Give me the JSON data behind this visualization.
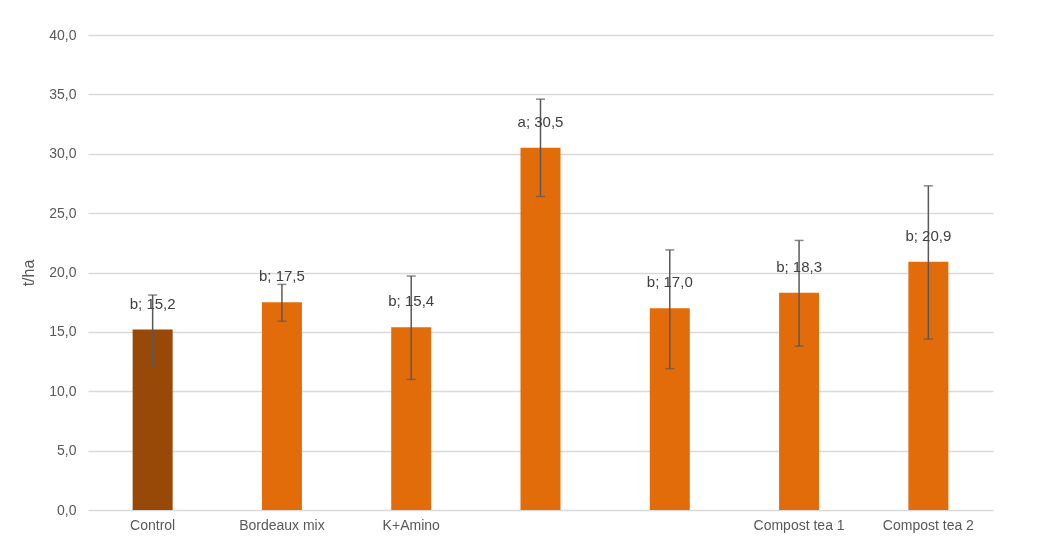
{
  "chart_data": {
    "type": "bar",
    "ylabel": "t/ha",
    "categories": [
      "Control",
      "Bordeaux mix",
      "K+Amino",
      null,
      null,
      "Compost tea 1",
      "Compost tea 2"
    ],
    "values": [
      15.2,
      17.5,
      15.4,
      30.5,
      17.0,
      18.3,
      20.9
    ],
    "colors": [
      "#984807",
      "#e36c0a",
      "#e36c0a",
      "#e36c0a",
      "#e36c0a",
      "#e36c0a",
      "#e36c0a"
    ],
    "errors": [
      [
        12.2,
        18.1
      ],
      [
        15.9,
        19.0
      ],
      [
        11.0,
        19.7
      ],
      [
        26.4,
        34.6
      ],
      [
        11.9,
        21.9
      ],
      [
        13.8,
        22.7
      ],
      [
        14.4,
        27.3
      ]
    ],
    "value_labels": [
      "b; 15,2",
      "b; 17,5",
      "b; 15,4",
      "a; 30,5",
      "b; 17,0",
      "b; 18,3",
      "b; 20,9"
    ],
    "ylim": [
      0,
      40
    ],
    "yticks": [
      {
        "value": 0,
        "label": "0,0"
      },
      {
        "value": 5,
        "label": "5,0"
      },
      {
        "value": 10,
        "label": "10,0"
      },
      {
        "value": 15,
        "label": "15,0"
      },
      {
        "value": 20,
        "label": "20,0"
      },
      {
        "value": 25,
        "label": "25,0"
      },
      {
        "value": 30,
        "label": "30,0"
      },
      {
        "value": 35,
        "label": "35,0"
      },
      {
        "value": 40,
        "label": "40,0"
      }
    ],
    "grid": "y"
  }
}
